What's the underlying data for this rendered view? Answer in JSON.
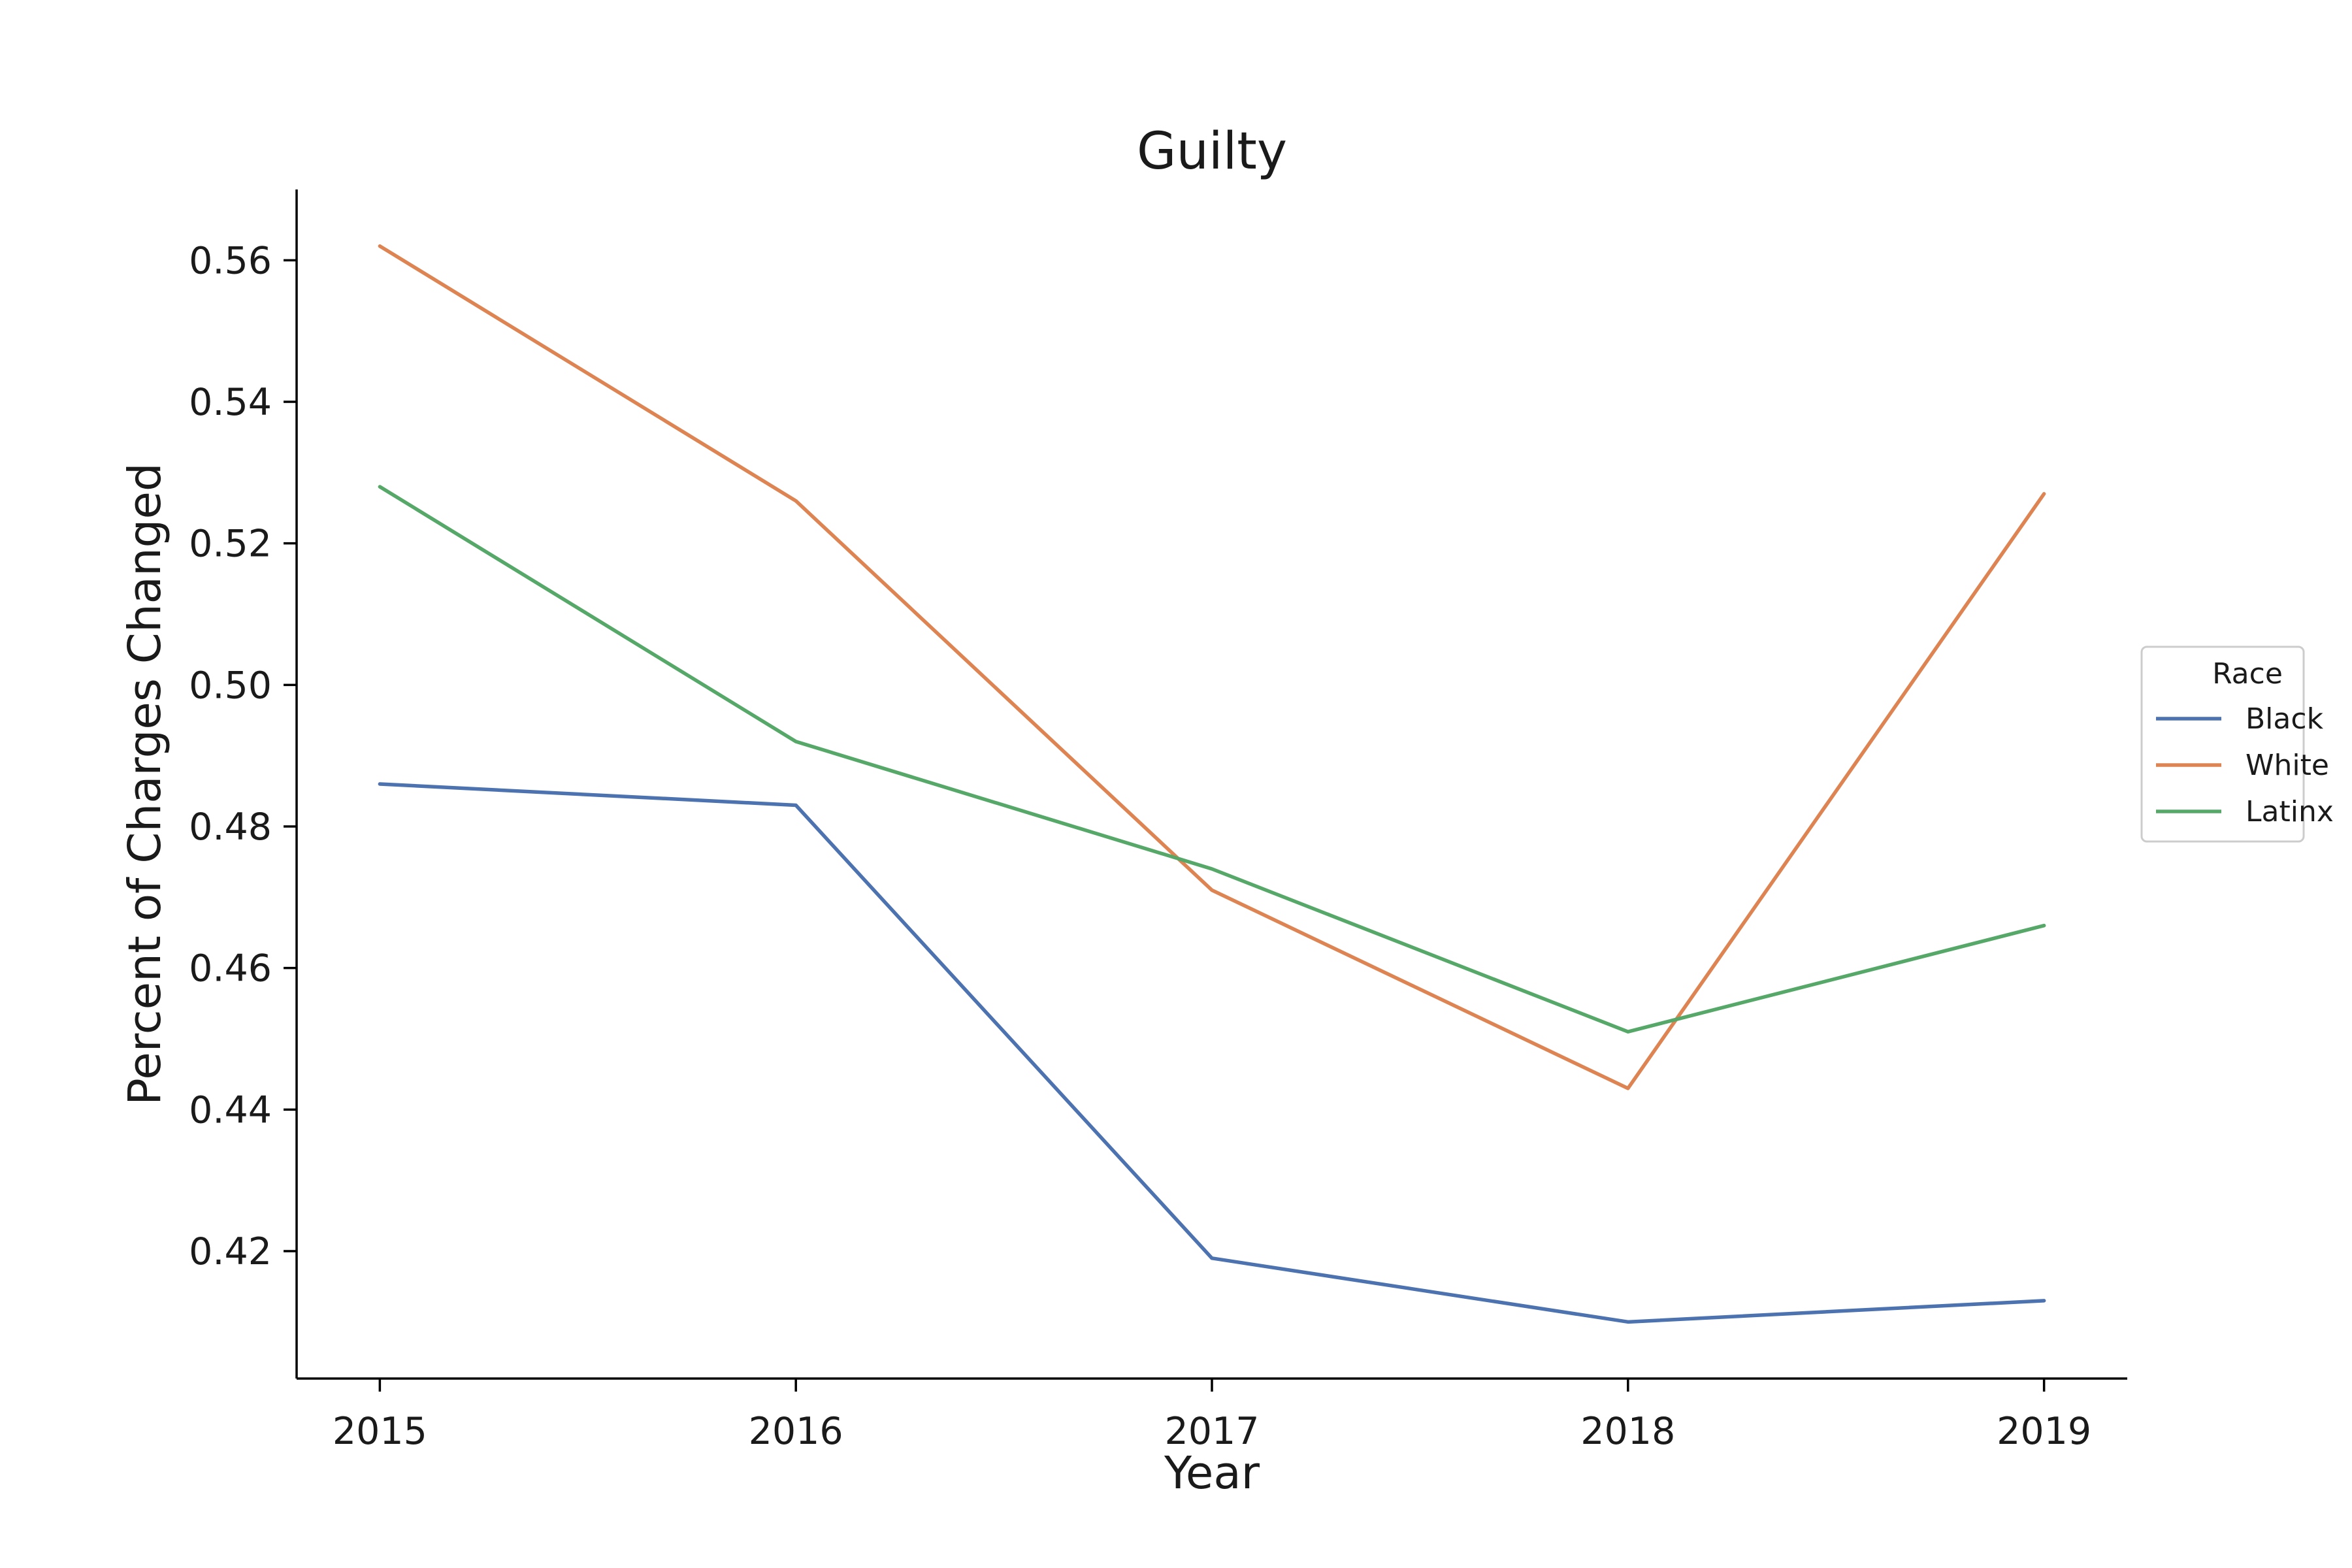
{
  "chart_data": {
    "type": "line",
    "title": "Guilty",
    "xlabel": "Year",
    "ylabel": "Percent of Charges Changed",
    "x": [
      2015,
      2016,
      2017,
      2018,
      2019
    ],
    "xlim": [
      2014.8,
      2019.2
    ],
    "ylim": [
      0.402,
      0.57
    ],
    "yticks": [
      0.42,
      0.44,
      0.46,
      0.48,
      0.5,
      0.52,
      0.54,
      0.56
    ],
    "ytick_labels": [
      "0.42",
      "0.44",
      "0.46",
      "0.48",
      "0.50",
      "0.52",
      "0.54",
      "0.56"
    ],
    "xtick_labels": [
      "2015",
      "2016",
      "2017",
      "2018",
      "2019"
    ],
    "grid": false,
    "legend": {
      "title": "Race",
      "placement": "outside-right"
    },
    "series": [
      {
        "name": "Black",
        "color": "#4c72b0",
        "values": [
          0.486,
          0.483,
          0.419,
          0.41,
          0.413
        ]
      },
      {
        "name": "White",
        "color": "#dd8452",
        "values": [
          0.562,
          0.526,
          0.471,
          0.443,
          0.527
        ]
      },
      {
        "name": "Latinx",
        "color": "#55a868",
        "values": [
          0.528,
          0.492,
          0.474,
          0.451,
          0.466
        ]
      }
    ]
  }
}
